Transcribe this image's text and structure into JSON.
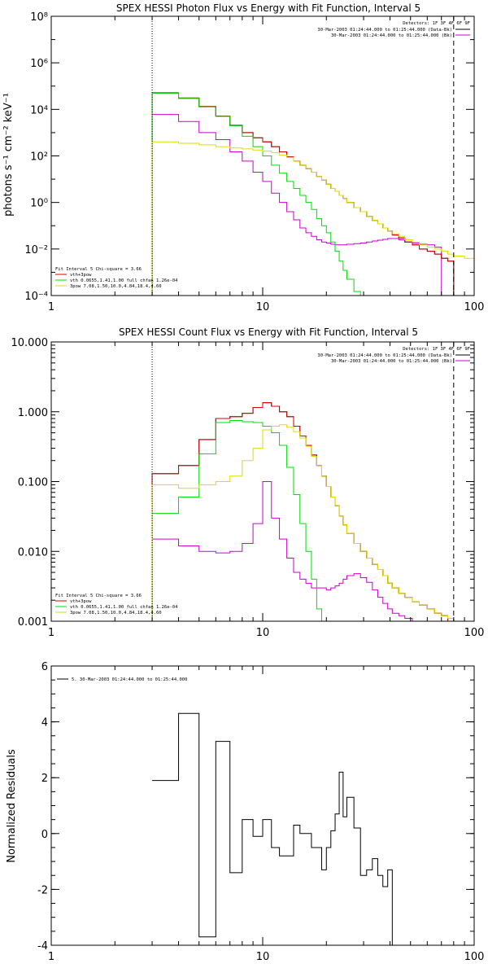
{
  "chart_data": [
    {
      "type": "line",
      "title": "SPEX HESSI Photon Flux vs Energy with Fit Function, Interval 5",
      "xlabel": "",
      "ylabel": "photons s⁻¹ cm⁻² keV⁻¹",
      "xscale": "log",
      "yscale": "log",
      "xlim": [
        1,
        100
      ],
      "ylim": [
        0.0001,
        100000000
      ],
      "xticks": [
        1,
        10,
        100
      ],
      "xtick_labels": [
        "1",
        "10",
        "100"
      ],
      "yticks": [
        0.0001,
        0.01,
        1,
        100,
        10000,
        1000000,
        100000000
      ],
      "ytick_labels": [
        "10⁻⁴",
        "10⁻²",
        "10⁰",
        "10²",
        "10⁴",
        "10⁶",
        "10⁸"
      ],
      "vlines": [
        {
          "x": 3,
          "style": "dotted",
          "color": "#000000"
        },
        {
          "x": 80,
          "style": "dashed",
          "color": "#000000"
        }
      ],
      "legend_top_right": [
        "Detectors: 1F 3F 4F 6F 9F",
        "30-Mar-2003 01:24:44.000 to 01:25:44.000 (Data-Bk)",
        "30-Mar-2003 01:24:44.000 to 01:25:44.000 (Bk)"
      ],
      "legend_bottom_left": [
        "Fit Interval 5   Chi-square = 3.66",
        "vth+3pow",
        "vth 0.0655,1.41,1.00  full chfan 1.26e-04",
        "3pow 7.08,1.50,10.0,4.84,18.4,4.60"
      ],
      "edges": [
        3,
        4,
        5,
        6,
        7,
        8,
        9,
        10,
        11,
        12,
        13,
        14,
        15,
        16,
        17,
        18,
        19,
        20,
        21,
        22,
        23,
        24,
        25,
        27,
        29,
        31,
        33,
        35,
        37,
        39,
        41,
        44,
        47,
        51,
        55,
        60,
        65,
        70,
        75,
        80,
        90,
        100
      ],
      "series": [
        {
          "name": "Data-Bk",
          "color": "#000000",
          "values": [
            50000,
            30000,
            13000,
            5000,
            2000,
            1000,
            600,
            400,
            250,
            150,
            90,
            60,
            40,
            28,
            20,
            13,
            9,
            6,
            4,
            3,
            2,
            1.5,
            1.0,
            0.6,
            0.4,
            0.25,
            0.17,
            0.12,
            0.08,
            0.06,
            0.04,
            0.03,
            0.02,
            0.015,
            0.01,
            0.008,
            0.006,
            0.004,
            0.003
          ]
        },
        {
          "name": "Bk",
          "color": "#cc00cc",
          "values": [
            6000,
            3000,
            1000,
            500,
            150,
            60,
            20,
            8,
            2.5,
            1.0,
            0.4,
            0.18,
            0.08,
            0.05,
            0.035,
            0.025,
            0.02,
            0.018,
            0.016,
            0.015,
            0.015,
            0.015,
            0.016,
            0.017,
            0.018,
            0.02,
            0.022,
            0.024,
            0.026,
            0.028,
            0.028,
            0.025,
            0.02,
            0.018,
            0.016,
            0.015,
            0.012,
            0.0001,
            1e-05
          ]
        },
        {
          "name": "vth+3pow",
          "color": "#dd0000",
          "values": [
            52000,
            31000,
            13500,
            5200,
            2100,
            1000,
            600,
            400,
            250,
            150,
            90,
            60,
            40,
            28,
            20,
            13,
            9,
            6,
            4,
            3,
            2,
            1.5,
            1.0,
            0.6,
            0.4,
            0.25,
            0.17,
            0.12,
            0.08,
            0.06,
            0.04,
            0.03,
            0.02,
            0.015,
            0.01,
            0.008,
            0.006,
            0.004,
            0.003
          ]
        },
        {
          "name": "vth",
          "color": "#00dd00",
          "values": [
            50000,
            30000,
            13000,
            5000,
            2000,
            700,
            250,
            100,
            40,
            18,
            8,
            4,
            2,
            1.0,
            0.5,
            0.2,
            0.1,
            0.05,
            0.02,
            0.008,
            0.003,
            0.0012,
            0.0005,
            0.00015,
            5e-05
          ]
        },
        {
          "name": "3pow",
          "color": "#dddd00",
          "values": [
            400,
            350,
            300,
            250,
            220,
            200,
            180,
            160,
            140,
            110,
            85,
            60,
            40,
            28,
            20,
            13,
            9,
            6,
            4,
            3,
            2,
            1.5,
            1.0,
            0.6,
            0.4,
            0.25,
            0.17,
            0.12,
            0.08,
            0.06,
            0.045,
            0.035,
            0.025,
            0.02,
            0.015,
            0.012,
            0.01,
            0.008,
            0.006,
            0.005,
            0.004
          ]
        }
      ]
    },
    {
      "type": "line",
      "title": "SPEX HESSI Count Flux vs Energy with Fit Function, Interval 5",
      "xlabel": "",
      "ylabel": "",
      "xscale": "log",
      "yscale": "log",
      "xlim": [
        1,
        100
      ],
      "ylim": [
        0.001,
        10
      ],
      "xticks": [
        1,
        10,
        100
      ],
      "xtick_labels": [
        "1",
        "10",
        "100"
      ],
      "yticks": [
        0.001,
        0.01,
        0.1,
        1,
        10
      ],
      "ytick_labels": [
        "0.001",
        "0.010",
        "0.100",
        "1.000",
        "10.000"
      ],
      "vlines": [
        {
          "x": 3,
          "style": "dotted",
          "color": "#000000"
        },
        {
          "x": 80,
          "style": "dashed",
          "color": "#000000"
        }
      ],
      "legend_top_right": [
        "Detectors: 1F 3F 4F 6F 9F",
        "30-Mar-2003 01:24:44.000 to 01:25:44.000 (Data-Bk)",
        "30-Mar-2003 01:24:44.000 to 01:25:44.000 (Bk)"
      ],
      "legend_bottom_left": [
        "Fit Interval 5   Chi-square = 3.66",
        "vth+3pow",
        "vth 0.0655,1.41,1.00  full chfan 1.26e-04",
        "3pow 7.08,1.50,10.0,4.84,18.4,4.60"
      ],
      "edges": [
        3,
        4,
        5,
        6,
        7,
        8,
        9,
        10,
        11,
        12,
        13,
        14,
        15,
        16,
        17,
        18,
        19,
        20,
        21,
        22,
        23,
        24,
        25,
        27,
        29,
        31,
        33,
        35,
        37,
        39,
        41,
        44,
        47,
        51,
        55,
        60,
        65,
        70,
        75,
        80,
        90,
        100
      ],
      "series": [
        {
          "name": "Data-Bk",
          "color": "#000000",
          "values": [
            0.13,
            0.17,
            0.4,
            0.8,
            0.85,
            0.95,
            1.15,
            1.35,
            1.2,
            1.0,
            0.85,
            0.62,
            0.45,
            0.33,
            0.24,
            0.17,
            0.12,
            0.085,
            0.06,
            0.045,
            0.032,
            0.024,
            0.018,
            0.013,
            0.01,
            0.008,
            0.0065,
            0.0055,
            0.0045,
            0.0035,
            0.003,
            0.0025,
            0.0022,
            0.0019,
            0.0017,
            0.0015,
            0.0013,
            0.0012,
            0.001,
            0.001,
            0.001
          ]
        },
        {
          "name": "Bk",
          "color": "#cc00cc",
          "values": [
            0.015,
            0.012,
            0.01,
            0.0095,
            0.01,
            0.013,
            0.025,
            0.1,
            0.03,
            0.015,
            0.008,
            0.005,
            0.004,
            0.0035,
            0.003,
            0.003,
            0.003,
            0.0028,
            0.003,
            0.0032,
            0.0035,
            0.004,
            0.0045,
            0.0048,
            0.0042,
            0.0036,
            0.0028,
            0.0022,
            0.0018,
            0.0015,
            0.0013,
            0.0012,
            0.0011,
            0.001,
            0.001,
            0.001,
            0.001,
            0.001,
            0.001
          ]
        },
        {
          "name": "vth+3pow",
          "color": "#dd0000",
          "values": [
            0.13,
            0.17,
            0.4,
            0.8,
            0.85,
            0.95,
            1.15,
            1.35,
            1.2,
            1.0,
            0.85,
            0.62,
            0.45,
            0.33,
            0.24,
            0.17,
            0.12,
            0.085,
            0.06,
            0.045,
            0.032,
            0.024,
            0.018,
            0.013,
            0.01,
            0.008,
            0.0065,
            0.0055,
            0.0045,
            0.0035,
            0.003,
            0.0025,
            0.0022,
            0.0019,
            0.0017,
            0.0015,
            0.0013,
            0.0012,
            0.001,
            0.001,
            0.001
          ]
        },
        {
          "name": "vth",
          "color": "#00dd00",
          "values": [
            0.035,
            0.06,
            0.25,
            0.7,
            0.75,
            0.72,
            0.7,
            0.62,
            0.5,
            0.33,
            0.16,
            0.065,
            0.025,
            0.01,
            0.004,
            0.0015,
            0.0008
          ]
        },
        {
          "name": "3pow",
          "color": "#dddd00",
          "values": [
            0.09,
            0.08,
            0.09,
            0.1,
            0.12,
            0.2,
            0.3,
            0.55,
            0.62,
            0.65,
            0.6,
            0.52,
            0.42,
            0.32,
            0.23,
            0.17,
            0.12,
            0.085,
            0.06,
            0.045,
            0.032,
            0.024,
            0.018,
            0.013,
            0.01,
            0.008,
            0.0065,
            0.0055,
            0.0045,
            0.0035,
            0.003,
            0.0025,
            0.0022,
            0.0019,
            0.0017,
            0.0015,
            0.0013,
            0.0012,
            0.0011,
            0.001,
            0.001
          ]
        }
      ]
    },
    {
      "type": "line",
      "title": "",
      "xlabel": "",
      "ylabel": "Normalized Residuals",
      "xscale": "log",
      "yscale": "linear",
      "xlim": [
        1,
        100
      ],
      "ylim": [
        -4,
        6
      ],
      "xticks": [
        1,
        10,
        100
      ],
      "xtick_labels": [
        "1",
        "10",
        "100"
      ],
      "yticks": [
        -4,
        -2,
        0,
        2,
        4,
        6
      ],
      "ytick_labels": [
        "-4",
        "-2",
        "0",
        "2",
        "4",
        "6"
      ],
      "legend_top_left": [
        "5. 30-Mar-2003 01:24:44.000 to 01:25:44.000"
      ],
      "edges": [
        3,
        4,
        5,
        6,
        7,
        8,
        9,
        10,
        11,
        12,
        13,
        14,
        15,
        16,
        17,
        18,
        19,
        20,
        21,
        22,
        23,
        24,
        25,
        27,
        29,
        31,
        33,
        35,
        37,
        39,
        41,
        44,
        47,
        51,
        55,
        60,
        65,
        70,
        75,
        80
      ],
      "series": [
        {
          "name": "",
          "color": "#000000",
          "values": [
            1.9,
            4.3,
            -3.7,
            3.3,
            -1.4,
            0.5,
            -0.1,
            0.5,
            -0.5,
            -0.8,
            -0.8,
            0.3,
            0.0,
            0.0,
            -0.5,
            -0.5,
            -1.3,
            -0.5,
            0.1,
            0.7,
            2.2,
            0.6,
            1.3,
            0.2,
            -1.5,
            -1.3,
            -0.9,
            -1.5,
            -1.9,
            -1.3,
            -4.0
          ]
        }
      ]
    }
  ]
}
